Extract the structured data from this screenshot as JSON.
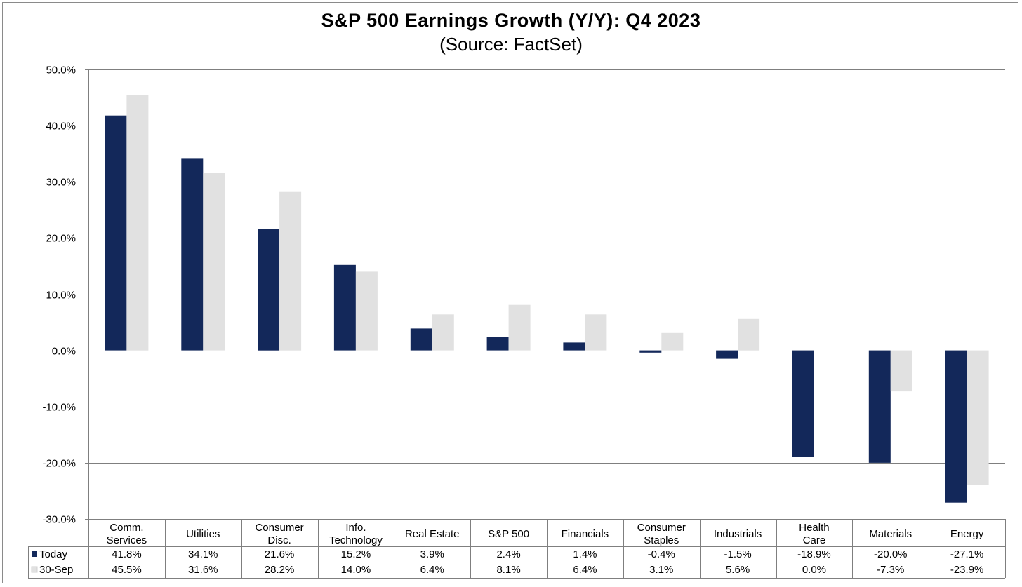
{
  "chart_data": {
    "type": "bar",
    "title": "S&P 500 Earnings Growth (Y/Y): Q4 2023",
    "subtitle": "(Source: FactSet)",
    "categories": [
      [
        "Comm.",
        "Services"
      ],
      [
        "Utilities"
      ],
      [
        "Consumer",
        "Disc."
      ],
      [
        "Info.",
        "Technology"
      ],
      [
        "Real Estate"
      ],
      [
        "S&P 500"
      ],
      [
        "Financials"
      ],
      [
        "Consumer",
        "Staples"
      ],
      [
        "Industrials"
      ],
      [
        "Health",
        "Care"
      ],
      [
        "Materials"
      ],
      [
        "Energy"
      ]
    ],
    "series": [
      {
        "name": "Today",
        "color": "#13285a",
        "values": [
          41.8,
          34.1,
          21.6,
          15.2,
          3.9,
          2.4,
          1.4,
          -0.4,
          -1.5,
          -18.9,
          -20.0,
          -27.1
        ],
        "labels": [
          "41.8%",
          "34.1%",
          "21.6%",
          "15.2%",
          "3.9%",
          "2.4%",
          "1.4%",
          "-0.4%",
          "-1.5%",
          "-18.9%",
          "-20.0%",
          "-27.1%"
        ]
      },
      {
        "name": "30-Sep",
        "color": "#e1e1e1",
        "values": [
          45.5,
          31.6,
          28.2,
          14.0,
          6.4,
          8.1,
          6.4,
          3.1,
          5.6,
          0.0,
          -7.3,
          -23.9
        ],
        "labels": [
          "45.5%",
          "31.6%",
          "28.2%",
          "14.0%",
          "6.4%",
          "8.1%",
          "6.4%",
          "3.1%",
          "5.6%",
          "0.0%",
          "-7.3%",
          "-23.9%"
        ]
      }
    ],
    "ylim": [
      -30,
      50
    ],
    "yticks": [
      -30,
      -20,
      -10,
      0,
      10,
      20,
      30,
      40,
      50
    ],
    "ytick_labels": [
      "-30.0%",
      "-20.0%",
      "-10.0%",
      "0.0%",
      "10.0%",
      "20.0%",
      "30.0%",
      "40.0%",
      "50.0%"
    ],
    "grid": true,
    "legend": "data-table"
  }
}
